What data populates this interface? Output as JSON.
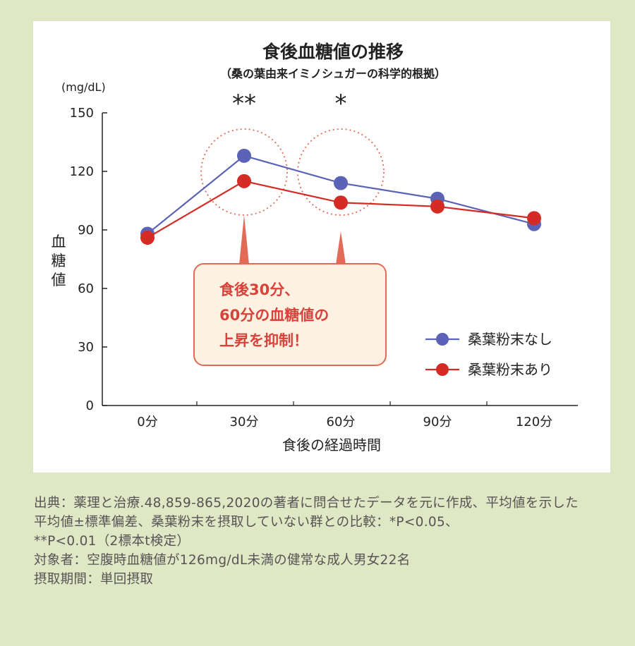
{
  "chart_data": {
    "type": "line",
    "title": "食後血糖値の推移",
    "subtitle": "（桑の葉由来イミノシュガーの科学的根拠）",
    "unit": "(mg/dL)",
    "ylabel": "血糖値",
    "xlabel": "食後の経過時間",
    "categories": [
      "0分",
      "30分",
      "60分",
      "90分",
      "120分"
    ],
    "yticks": [
      "0",
      "30",
      "60",
      "90",
      "120",
      "150"
    ],
    "ylim": [
      0,
      150
    ],
    "grid": false,
    "legend_position": "right",
    "series": [
      {
        "name": "桑葉粉末なし",
        "color": "#5b63b7",
        "values": [
          88,
          128,
          114,
          106,
          93
        ]
      },
      {
        "name": "桑葉粉末あり",
        "color": "#d42b25",
        "values": [
          86,
          115,
          104,
          102,
          96
        ]
      }
    ],
    "significance": [
      {
        "category": "30分",
        "label": "**"
      },
      {
        "category": "60分",
        "label": "*"
      }
    ],
    "callout": [
      "食後30分、",
      "60分の血糖値の",
      "上昇を抑制！"
    ],
    "accent_color": "#e26a57"
  },
  "notes": [
    "出典：薬理と治療.48,859-865,2020の著者に問合せたデータを元に作成、平均値を示した",
    "平均値±標準偏差、桑葉粉末を摂取していない群との比較：*P<0.05、",
    "**P<0.01（2標本t検定）",
    "対象者：空腹時血糖値が126mg/dL未満の健常な成人男女22名",
    "摂取期間：単回摂取"
  ]
}
